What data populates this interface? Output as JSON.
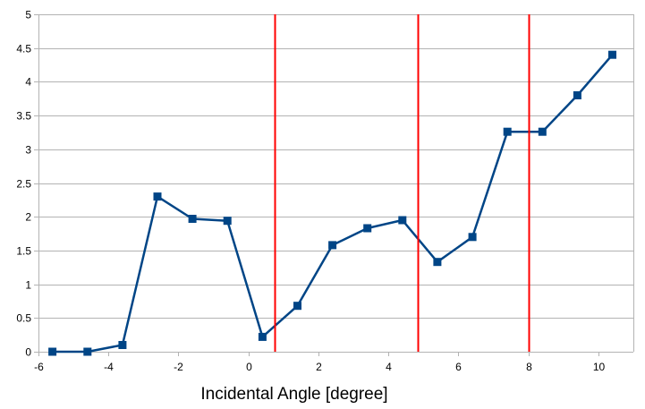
{
  "chart_data": {
    "type": "line",
    "title": "",
    "xlabel": "Incidental Angle [degree]",
    "ylabel": "",
    "xlim": [
      -6,
      11
    ],
    "ylim": [
      0,
      5
    ],
    "xticks": [
      -6,
      -4,
      -2,
      0,
      2,
      4,
      6,
      8,
      10
    ],
    "yticks": [
      0,
      0.5,
      1,
      1.5,
      2,
      2.5,
      3,
      3.5,
      4,
      4.5,
      5
    ],
    "grid": "horizontal",
    "legend": "none",
    "series": [
      {
        "color": "#004586",
        "marker": "square",
        "x": [
          -5.6,
          -4.6,
          -3.6,
          -2.6,
          -1.6,
          -0.6,
          0.4,
          1.4,
          2.4,
          3.4,
          4.4,
          5.4,
          6.4,
          7.4,
          8.4,
          9.4,
          10.4
        ],
        "y": [
          0,
          0,
          0.1,
          2.3,
          1.97,
          1.94,
          0.22,
          0.68,
          1.58,
          1.83,
          1.95,
          1.33,
          1.7,
          3.26,
          3.26,
          3.8,
          4.4
        ]
      }
    ],
    "vertical_lines": {
      "color": "#ff0000",
      "x": [
        0.75,
        4.85,
        8
      ]
    },
    "colors": {
      "grid": "#b3b3b3",
      "axis": "#b3b3b3"
    }
  }
}
